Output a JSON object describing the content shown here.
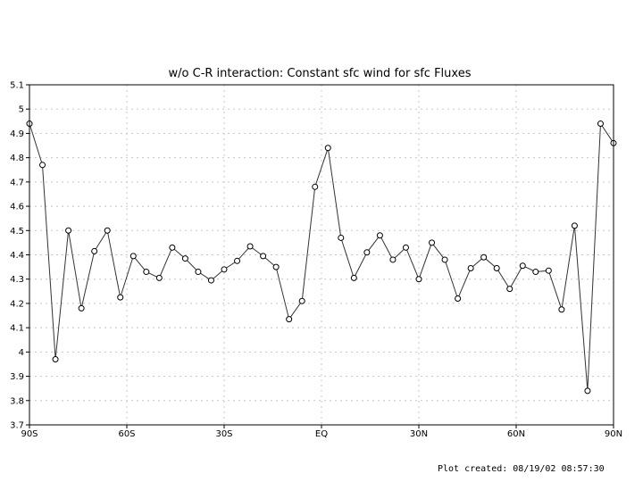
{
  "chart_data": {
    "type": "line",
    "title": "w/o C-R interaction: Constant sfc wind for sfc Fluxes",
    "xlabel": "",
    "ylabel": "",
    "xlim": [
      -90,
      90
    ],
    "ylim": [
      3.7,
      5.1
    ],
    "grid": true,
    "x_ticks": [
      {
        "value": -90,
        "label": "90S"
      },
      {
        "value": -60,
        "label": "60S"
      },
      {
        "value": -30,
        "label": "30S"
      },
      {
        "value": 0,
        "label": "EQ"
      },
      {
        "value": 30,
        "label": "30N"
      },
      {
        "value": 60,
        "label": "60N"
      },
      {
        "value": 90,
        "label": "90N"
      }
    ],
    "y_ticks": [
      3.7,
      3.8,
      3.9,
      4,
      4.1,
      4.2,
      4.3,
      4.4,
      4.5,
      4.6,
      4.7,
      4.8,
      4.9,
      5,
      5.1
    ],
    "series": [
      {
        "color": "#333333",
        "x": [
          -90,
          -86,
          -82,
          -78,
          -74,
          -70,
          -66,
          -62,
          -58,
          -54,
          -50,
          -46,
          -42,
          -38,
          -34,
          -30,
          -26,
          -22,
          -18,
          -14,
          -10,
          -6,
          -2,
          2,
          6,
          10,
          14,
          18,
          22,
          26,
          30,
          34,
          38,
          42,
          46,
          50,
          54,
          58,
          62,
          66,
          70,
          74,
          78,
          82,
          86,
          90
        ],
        "values": [
          4.94,
          4.77,
          3.97,
          4.5,
          4.18,
          4.415,
          4.5,
          4.225,
          4.395,
          4.33,
          4.305,
          4.43,
          4.385,
          4.33,
          4.295,
          4.34,
          4.375,
          4.435,
          4.395,
          4.35,
          4.135,
          4.21,
          4.68,
          4.84,
          4.47,
          4.305,
          4.41,
          4.48,
          4.38,
          4.43,
          4.3,
          4.45,
          4.38,
          4.22,
          4.345,
          4.39,
          4.345,
          4.26,
          4.355,
          4.33,
          4.335,
          4.175,
          4.52,
          3.84,
          4.94,
          4.86
        ]
      }
    ]
  },
  "footer": {
    "created_text": "Plot created: 08/19/02 08:57:30"
  }
}
